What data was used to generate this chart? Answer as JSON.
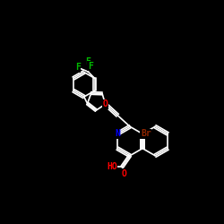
{
  "background": "#000000",
  "bond_color": "#FFFFFF",
  "bond_lw": 1.2,
  "atom_colors": {
    "N": "#0000FF",
    "O": "#FF0000",
    "Br": "#8B2500",
    "F": "#00BB00",
    "C": "#FFFFFF"
  },
  "font_size": 7,
  "font_size_small": 6
}
